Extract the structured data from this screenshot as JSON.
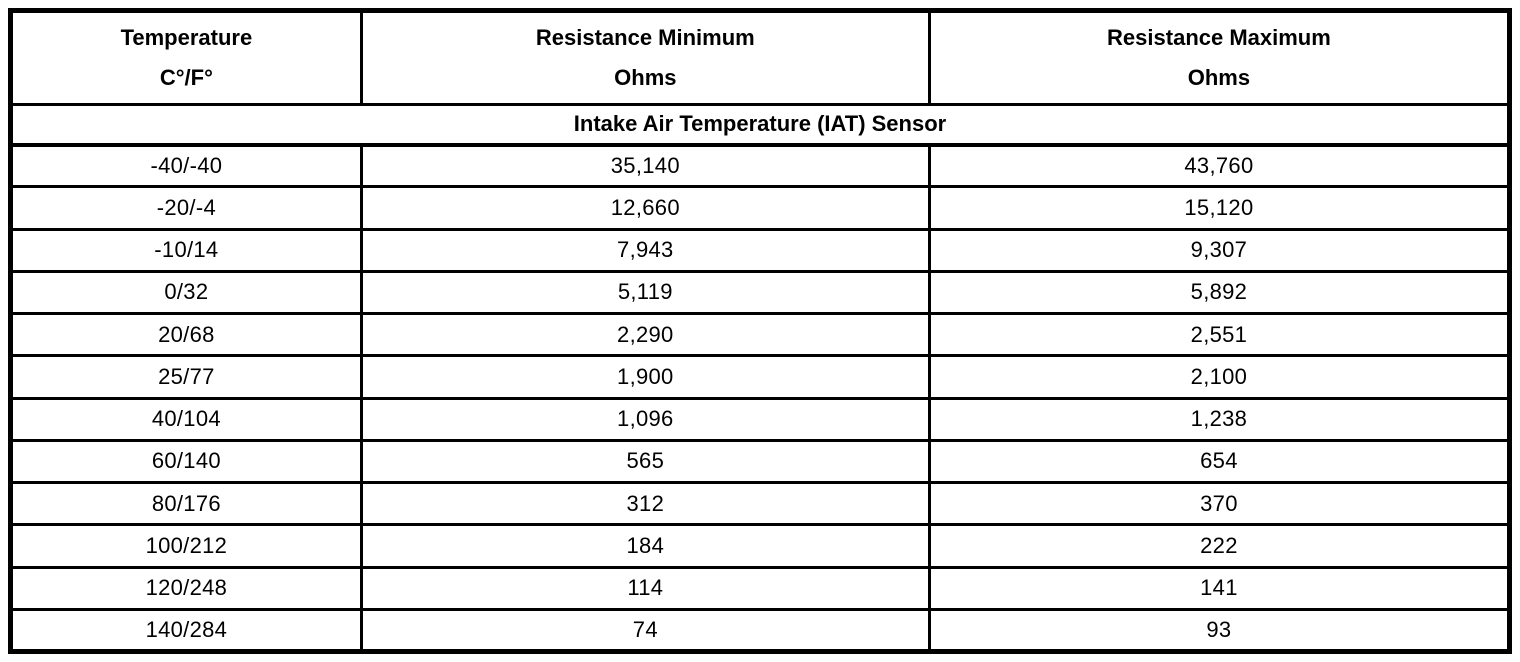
{
  "page": {
    "background_color": "#ffffff",
    "border_color": "#000000",
    "text_color": "#000000"
  },
  "table": {
    "columns": [
      {
        "title": "Temperature",
        "subtitle": "C°/F°"
      },
      {
        "title": "Resistance Minimum",
        "subtitle": "Ohms"
      },
      {
        "title": "Resistance Maximum",
        "subtitle": "Ohms"
      }
    ],
    "section_title": "Intake Air Temperature (IAT) Sensor",
    "rows": [
      {
        "temperature": "-40/-40",
        "resistance_min": "35,140",
        "resistance_max": "43,760"
      },
      {
        "temperature": "-20/-4",
        "resistance_min": "12,660",
        "resistance_max": "15,120"
      },
      {
        "temperature": "-10/14",
        "resistance_min": "7,943",
        "resistance_max": "9,307"
      },
      {
        "temperature": "0/32",
        "resistance_min": "5,119",
        "resistance_max": "5,892"
      },
      {
        "temperature": "20/68",
        "resistance_min": "2,290",
        "resistance_max": "2,551"
      },
      {
        "temperature": "25/77",
        "resistance_min": "1,900",
        "resistance_max": "2,100"
      },
      {
        "temperature": "40/104",
        "resistance_min": "1,096",
        "resistance_max": "1,238"
      },
      {
        "temperature": "60/140",
        "resistance_min": "565",
        "resistance_max": "654"
      },
      {
        "temperature": "80/176",
        "resistance_min": "312",
        "resistance_max": "370"
      },
      {
        "temperature": "100/212",
        "resistance_min": "184",
        "resistance_max": "222"
      },
      {
        "temperature": "120/248",
        "resistance_min": "114",
        "resistance_max": "141"
      },
      {
        "temperature": "140/284",
        "resistance_min": "74",
        "resistance_max": "93"
      }
    ]
  },
  "chart_data": {
    "type": "table",
    "title": "Intake Air Temperature (IAT) Sensor",
    "columns": [
      "Temperature C°/F°",
      "Resistance Minimum Ohms",
      "Resistance Maximum Ohms"
    ],
    "rows": [
      [
        "-40/-40",
        35140,
        43760
      ],
      [
        "-20/-4",
        12660,
        15120
      ],
      [
        "-10/14",
        7943,
        9307
      ],
      [
        "0/32",
        5119,
        5892
      ],
      [
        "20/68",
        2290,
        2551
      ],
      [
        "25/77",
        1900,
        2100
      ],
      [
        "40/104",
        1096,
        1238
      ],
      [
        "60/140",
        565,
        654
      ],
      [
        "80/176",
        312,
        370
      ],
      [
        "100/212",
        184,
        222
      ],
      [
        "120/248",
        114,
        141
      ],
      [
        "140/284",
        74,
        93
      ]
    ]
  }
}
